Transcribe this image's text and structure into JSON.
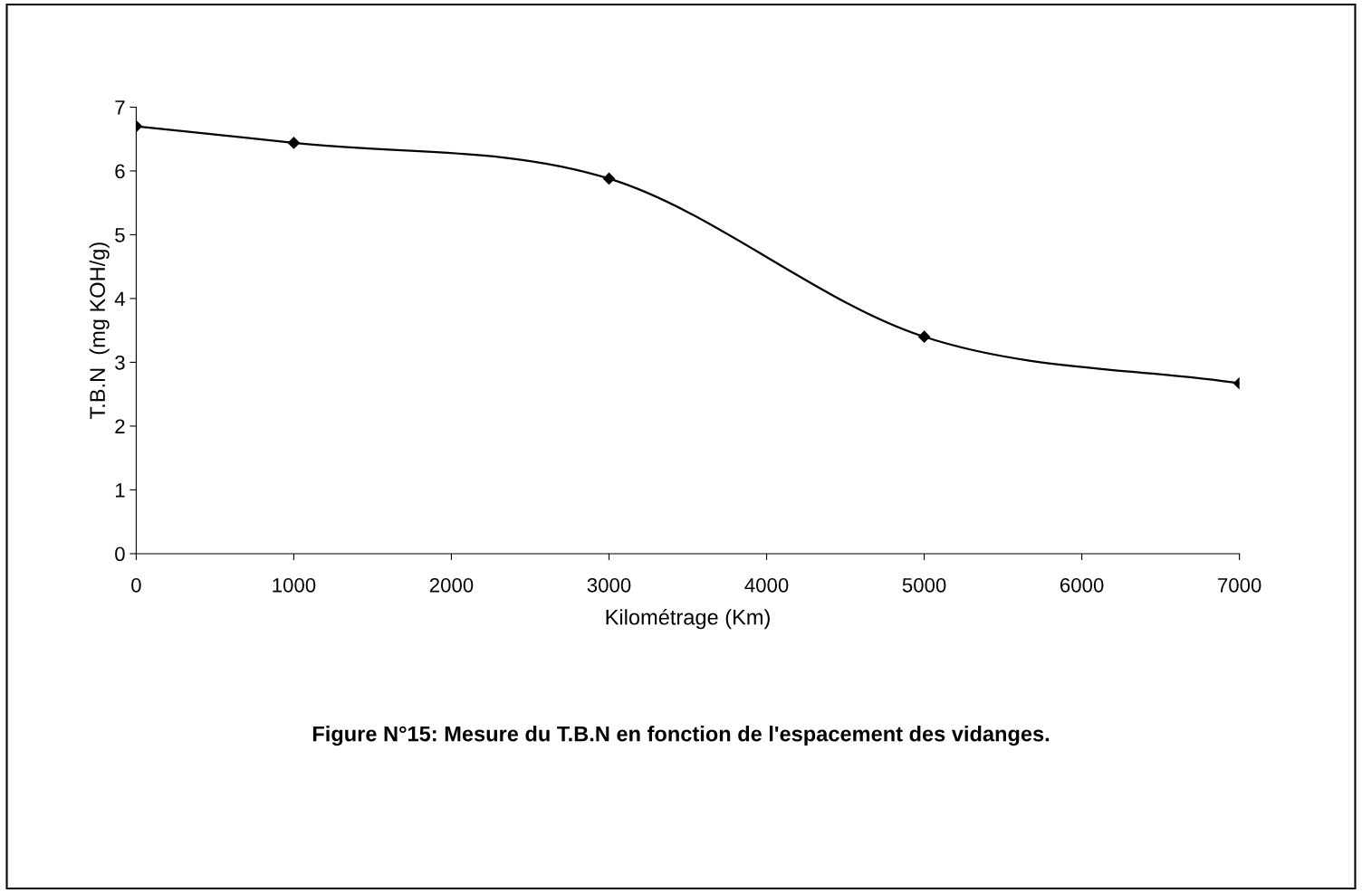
{
  "chart_data": {
    "type": "line",
    "xlabel": "Kilométrage (Km)",
    "ylabel": "T.B.N  (mg KOH/g)",
    "x": [
      0,
      1000,
      3000,
      5000,
      7000
    ],
    "series": [
      {
        "color": "#000000",
        "values": [
          6.7,
          6.44,
          5.88,
          3.4,
          2.67
        ]
      }
    ],
    "xlim": [
      0,
      7000
    ],
    "xticks": [
      0,
      1000,
      2000,
      3000,
      4000,
      5000,
      6000,
      7000
    ],
    "ylim": [
      0,
      7
    ],
    "yticks": [
      0,
      1,
      2,
      3,
      4,
      5,
      6,
      7
    ],
    "marker": "diamond",
    "line_style": "solid",
    "grid": false,
    "legend": false,
    "annotations": [
      "Figure N°15: Mesure du T.B.N en fonction de l'espacement des vidanges."
    ]
  }
}
